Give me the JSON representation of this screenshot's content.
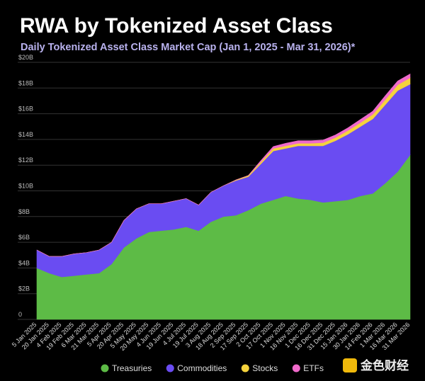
{
  "chart_data": {
    "type": "stacked_area",
    "title": "RWA by Tokenized Asset Class",
    "subtitle": "Daily Tokenized Asset Class Market Cap (Jan 1, 2025 - Mar 31, 2026)*",
    "x": [
      "5 Jan 2025",
      "20 Jan 2025",
      "4 Feb 2025",
      "19 Feb 2025",
      "6 Mar 2025",
      "21 Mar 2025",
      "5 Apr 2025",
      "20 Apr 2025",
      "5 May 2025",
      "20 May 2025",
      "4 Jun 2025",
      "19 Jun 2025",
      "4 Jul 2025",
      "19 Jul 2025",
      "3 Aug 2025",
      "18 Aug 2025",
      "2 Sep 2025",
      "17 Sep 2025",
      "2 Oct 2025",
      "17 Oct 2025",
      "1 Nov 2025",
      "16 Nov 2025",
      "1 Dec 2025",
      "16 Dec 2025",
      "31 Dec 2025",
      "15 Jan 2026",
      "30 Jan 2026",
      "14 Feb 2026",
      "1 Mar 2026",
      "16 Mar 2026",
      "31 Mar 2026"
    ],
    "series": [
      {
        "name": "Treasuries",
        "color": "#5dbb46",
        "values": [
          4.0,
          3.6,
          3.3,
          3.4,
          3.5,
          3.6,
          4.3,
          5.6,
          6.3,
          6.8,
          6.9,
          7.0,
          7.2,
          6.9,
          7.6,
          8.0,
          8.1,
          8.5,
          9.0,
          9.3,
          9.6,
          9.4,
          9.3,
          9.1,
          9.2,
          9.3,
          9.6,
          9.8,
          10.6,
          11.5,
          12.8
        ]
      },
      {
        "name": "Commodities",
        "color": "#6a4cf2",
        "values": [
          1.4,
          1.3,
          1.6,
          1.7,
          1.7,
          1.8,
          1.7,
          2.1,
          2.3,
          2.2,
          2.1,
          2.2,
          2.2,
          2.0,
          2.3,
          2.4,
          2.7,
          2.6,
          3.1,
          3.8,
          3.7,
          4.1,
          4.2,
          4.4,
          4.7,
          5.1,
          5.4,
          5.8,
          6.1,
          6.3,
          5.5
        ]
      },
      {
        "name": "Stocks",
        "color": "#f5d33c",
        "values": [
          0,
          0,
          0,
          0,
          0,
          0,
          0,
          0,
          0,
          0,
          0,
          0,
          0,
          0,
          0,
          0,
          0.05,
          0.1,
          0.15,
          0.2,
          0.2,
          0.2,
          0.2,
          0.25,
          0.25,
          0.3,
          0.3,
          0.35,
          0.4,
          0.45,
          0.5
        ]
      },
      {
        "name": "ETFs",
        "color": "#f06acb",
        "values": [
          0,
          0,
          0,
          0,
          0,
          0,
          0,
          0,
          0,
          0,
          0,
          0,
          0,
          0,
          0,
          0,
          0,
          0,
          0.1,
          0.15,
          0.2,
          0.2,
          0.2,
          0.2,
          0.2,
          0.2,
          0.25,
          0.25,
          0.3,
          0.3,
          0.3
        ]
      }
    ],
    "ylim": [
      0,
      20
    ],
    "yticks": [
      0,
      {
        "value": 2,
        "label": "$2B"
      },
      {
        "value": 4,
        "label": "$4B"
      },
      {
        "value": 6,
        "label": "$6B"
      },
      {
        "value": 8,
        "label": "$8B"
      },
      {
        "value": 10,
        "label": "$10B"
      },
      {
        "value": 12,
        "label": "$12B"
      },
      {
        "value": 14,
        "label": "$14B"
      },
      {
        "value": 16,
        "label": "$16B"
      },
      {
        "value": 18,
        "label": "$18B"
      },
      {
        "value": 20,
        "label": "$20B"
      }
    ],
    "grid": true,
    "legend": "bottom",
    "watermark": "金色财经"
  }
}
